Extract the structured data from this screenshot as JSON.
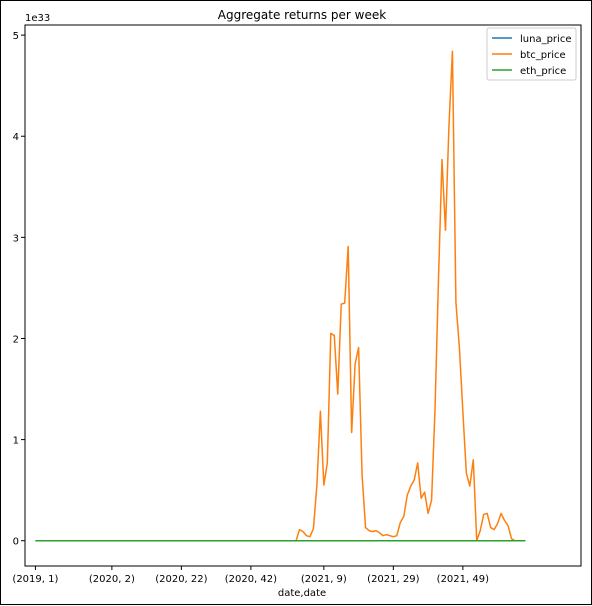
{
  "chart_data": {
    "type": "line",
    "title": "Aggregate returns per week",
    "xlabel": "date,date",
    "ylabel": "",
    "y_offset_label": "1e33",
    "y_scale_exponent": 33,
    "ylim": [
      -0.25,
      5.1
    ],
    "y_ticks": [
      0,
      1,
      2,
      3,
      4,
      5
    ],
    "x_range_weeks": [
      -3,
      157
    ],
    "x_ticks": [
      {
        "week": 0,
        "label": "(2019, 1)"
      },
      {
        "week": 22,
        "label": "(2020, 2)"
      },
      {
        "week": 42,
        "label": "(2020, 22)"
      },
      {
        "week": 62,
        "label": "(2020, 42)"
      },
      {
        "week": 83,
        "label": "(2021, 9)"
      },
      {
        "week": 103,
        "label": "(2021, 29)"
      },
      {
        "week": 123,
        "label": "(2021, 49)"
      }
    ],
    "grid": false,
    "legend_position": "top-right",
    "series": [
      {
        "name": "luna_price",
        "color": "#1f77b4",
        "points": [
          [
            0,
            0
          ],
          [
            141,
            0
          ]
        ]
      },
      {
        "name": "btc_price",
        "color": "#ff7f0e",
        "points": [
          [
            0,
            0
          ],
          [
            75,
            0
          ],
          [
            76,
            0.11
          ],
          [
            77,
            0.09
          ],
          [
            78,
            0.05
          ],
          [
            79,
            0.04
          ],
          [
            80,
            0.12
          ],
          [
            81,
            0.55
          ],
          [
            82,
            1.28
          ],
          [
            83,
            0.55
          ],
          [
            84,
            0.77
          ],
          [
            85,
            2.05
          ],
          [
            86,
            2.03
          ],
          [
            87,
            1.45
          ],
          [
            88,
            2.34
          ],
          [
            89,
            2.35
          ],
          [
            90,
            2.91
          ],
          [
            91,
            1.07
          ],
          [
            92,
            1.75
          ],
          [
            93,
            1.91
          ],
          [
            94,
            0.65
          ],
          [
            95,
            0.13
          ],
          [
            96,
            0.1
          ],
          [
            97,
            0.09
          ],
          [
            98,
            0.1
          ],
          [
            99,
            0.08
          ],
          [
            100,
            0.05
          ],
          [
            101,
            0.06
          ],
          [
            102,
            0.05
          ],
          [
            103,
            0.04
          ],
          [
            104,
            0.05
          ],
          [
            105,
            0.18
          ],
          [
            106,
            0.24
          ],
          [
            107,
            0.45
          ],
          [
            108,
            0.54
          ],
          [
            109,
            0.6
          ],
          [
            110,
            0.77
          ],
          [
            111,
            0.42
          ],
          [
            112,
            0.48
          ],
          [
            113,
            0.27
          ],
          [
            114,
            0.4
          ],
          [
            115,
            1.31
          ],
          [
            116,
            2.6
          ],
          [
            117,
            3.77
          ],
          [
            118,
            3.07
          ],
          [
            119,
            4.1
          ],
          [
            120,
            4.84
          ],
          [
            121,
            2.36
          ],
          [
            122,
            1.91
          ],
          [
            123,
            1.28
          ],
          [
            124,
            0.67
          ],
          [
            125,
            0.54
          ],
          [
            126,
            0.8
          ],
          [
            127,
            0.0
          ],
          [
            128,
            0.1
          ],
          [
            129,
            0.26
          ],
          [
            130,
            0.27
          ],
          [
            131,
            0.13
          ],
          [
            132,
            0.11
          ],
          [
            133,
            0.17
          ],
          [
            134,
            0.27
          ],
          [
            135,
            0.2
          ],
          [
            136,
            0.15
          ],
          [
            137,
            0.02
          ],
          [
            138,
            0.0
          ],
          [
            141,
            0.0
          ]
        ]
      },
      {
        "name": "eth_price",
        "color": "#2ca02c",
        "points": [
          [
            0,
            0
          ],
          [
            141,
            0
          ]
        ]
      }
    ]
  }
}
